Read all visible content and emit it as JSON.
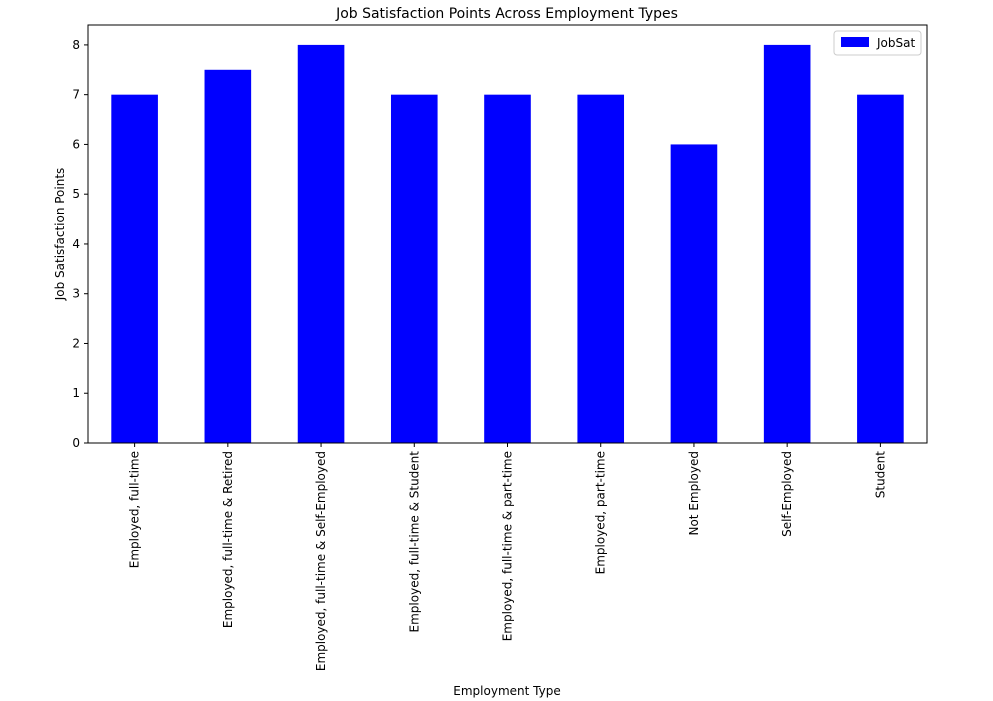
{
  "chart_data": {
    "type": "bar",
    "title": "Job Satisfaction Points Across Employment Types",
    "xlabel": "Employment Type",
    "ylabel": "Job Satisfaction Points",
    "categories": [
      "Employed, full-time",
      "Employed, full-time & Retired",
      "Employed, full-time & Self-Employed",
      "Employed, full-time & Student",
      "Employed, full-time & part-time",
      "Employed, part-time",
      "Not Employed",
      "Self-Employed",
      "Student"
    ],
    "series": [
      {
        "name": "JobSat",
        "values": [
          7,
          7.5,
          8,
          7,
          7,
          7,
          6,
          8,
          7
        ]
      }
    ],
    "ylim": [
      0,
      8.4
    ],
    "yticks": [
      "0",
      "1",
      "2",
      "3",
      "4",
      "5",
      "6",
      "7",
      "8"
    ],
    "grid": false,
    "legend_position": "top-right",
    "bar_color": "#0000ff"
  }
}
